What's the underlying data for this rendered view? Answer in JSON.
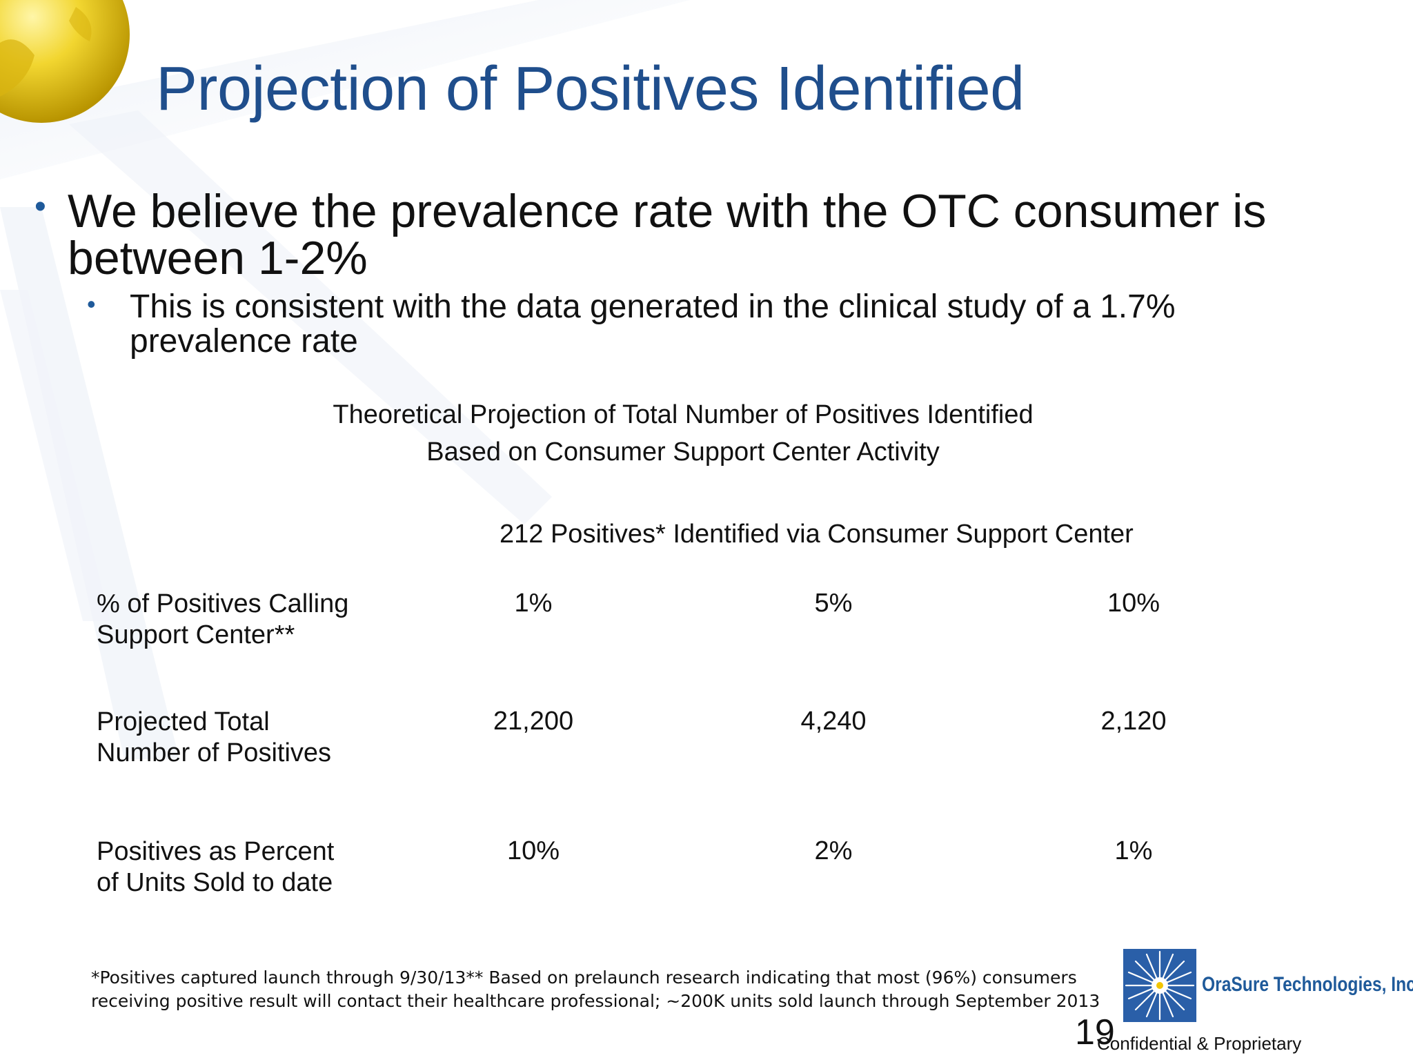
{
  "slide": {
    "title": "Projection of Positives Identified",
    "bullet_1": "We believe the prevalence rate with the OTC consumer is between 1-2%",
    "bullet_2": "This is consistent with the data generated in the clinical study of a 1.7% prevalence rate",
    "bullet_marker": "•"
  },
  "table": {
    "caption_line_1": "Theoretical Projection of Total Number of Positives Identified",
    "caption_line_2": "Based on Consumer Support Center Activity",
    "header": "212 Positives* Identified via Consumer Support Center",
    "rows": [
      {
        "label_line_1": "% of Positives Calling",
        "label_line_2": "Support Center**",
        "values": [
          "1%",
          "5%",
          "10%"
        ]
      },
      {
        "label_line_1": "Projected Total",
        "label_line_2": "Number of Positives",
        "values": [
          "21,200",
          "4,240",
          "2,120"
        ]
      },
      {
        "label_line_1": "Positives as Percent",
        "label_line_2": "of Units Sold to date",
        "values": [
          "10%",
          "2%",
          "1%"
        ]
      }
    ]
  },
  "footnote": "*Positives captured launch through 9/30/13** Based on prelaunch research indicating that most (96%) consumers receiving positive result will contact their healthcare professional; ~200K units sold launch through September 2013",
  "footer": {
    "page_number": "19",
    "confidentiality": "Confidential & Proprietary",
    "company_name": "OraSure Technologies, Inc."
  },
  "colors": {
    "title": "#1f4e8c",
    "bullet": "#1f5a9a",
    "logo_blue": "#2a5fa8",
    "globe_gold": "#e8c21a"
  },
  "icons": {
    "corner_graphic": "gold-globe-icon",
    "logo": "starburst-logo-icon"
  }
}
